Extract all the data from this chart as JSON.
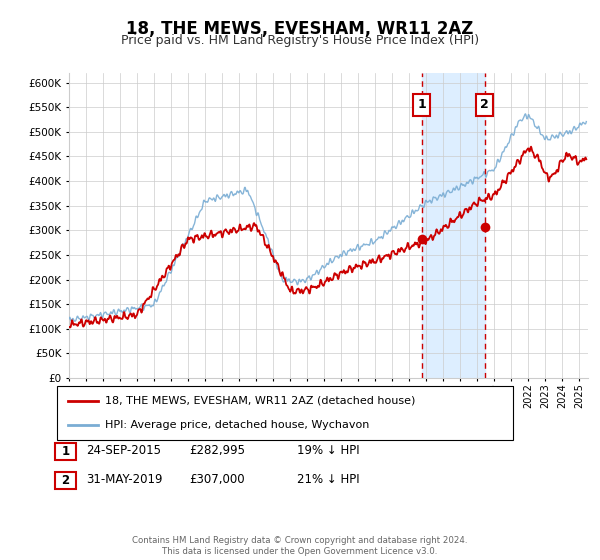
{
  "title": "18, THE MEWS, EVESHAM, WR11 2AZ",
  "subtitle": "Price paid vs. HM Land Registry's House Price Index (HPI)",
  "legend_label_red": "18, THE MEWS, EVESHAM, WR11 2AZ (detached house)",
  "legend_label_blue": "HPI: Average price, detached house, Wychavon",
  "event1_label": "1",
  "event1_date": "24-SEP-2015",
  "event1_price": "£282,995",
  "event1_hpi": "19% ↓ HPI",
  "event1_year": 2015.73,
  "event1_value_red": 282995,
  "event2_label": "2",
  "event2_date": "31-MAY-2019",
  "event2_price": "£307,000",
  "event2_hpi": "21% ↓ HPI",
  "event2_year": 2019.42,
  "event2_value_red": 307000,
  "footer": "Contains HM Land Registry data © Crown copyright and database right 2024.\nThis data is licensed under the Open Government Licence v3.0.",
  "ylim": [
    0,
    620000
  ],
  "xlim_start": 1995.0,
  "xlim_end": 2025.5,
  "red_color": "#cc0000",
  "blue_color": "#7aadd4",
  "shade_color": "#ddeeff",
  "grid_color": "#cccccc",
  "bg_color": "#ffffff"
}
